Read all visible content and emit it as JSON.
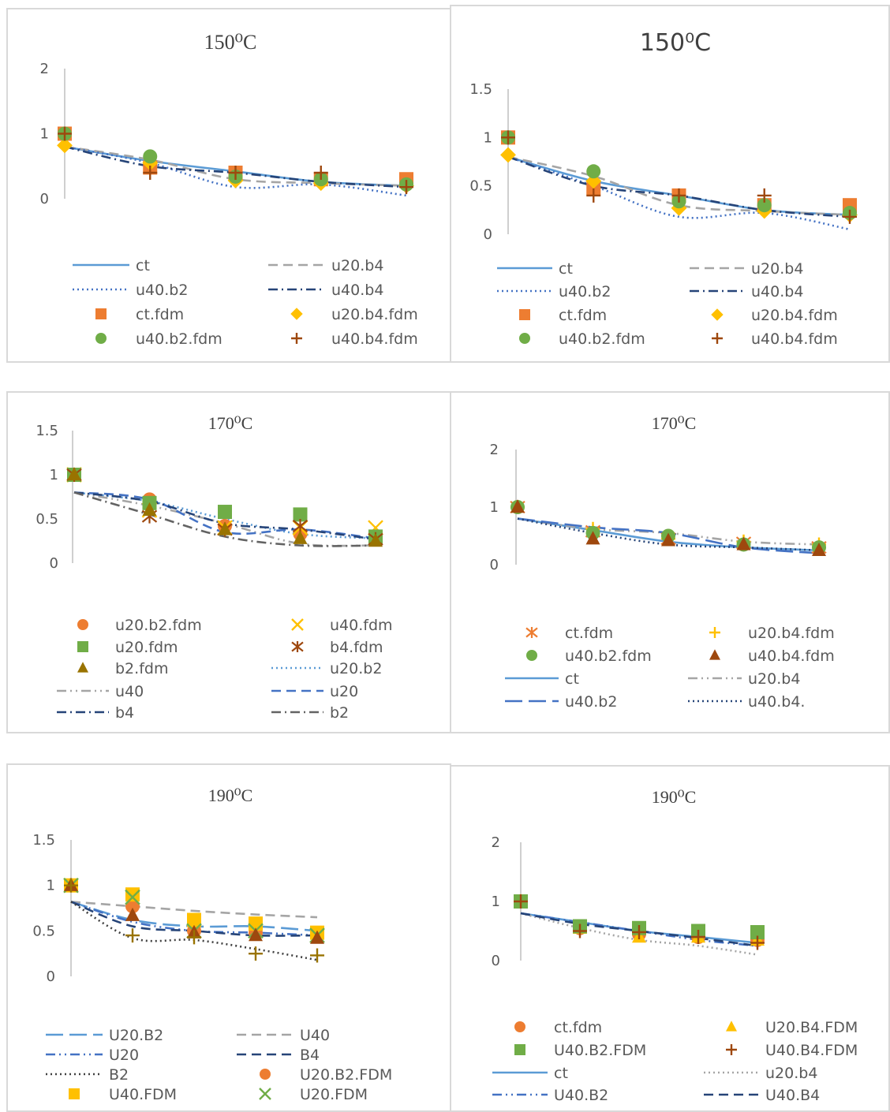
{
  "chart_data": [
    {
      "type": "line",
      "title": "150⁰C",
      "ylim": [
        0,
        2
      ],
      "yticks": [
        0,
        1,
        2
      ],
      "x": [
        1,
        2,
        3,
        4,
        5
      ],
      "series": [
        {
          "name": "ct",
          "kind": "line",
          "dash": "solid",
          "color": "#5b9bd5",
          "values": [
            0.8,
            0.58,
            0.42,
            0.26,
            0.2
          ]
        },
        {
          "name": "u20.b4",
          "kind": "line",
          "dash": "dash",
          "color": "#a5a5a5",
          "values": [
            0.8,
            0.6,
            0.3,
            0.24,
            0.2
          ]
        },
        {
          "name": "u40.b2",
          "kind": "line",
          "dash": "dot",
          "color": "#4472c4",
          "values": [
            0.8,
            0.55,
            0.18,
            0.22,
            0.05
          ]
        },
        {
          "name": "u40.b4",
          "kind": "line",
          "dash": "dashdot",
          "color": "#264478",
          "values": [
            0.8,
            0.5,
            0.4,
            0.26,
            0.18
          ]
        },
        {
          "name": "ct.fdm",
          "kind": "marker",
          "marker": "square",
          "color": "#ed7d31",
          "values": [
            1.0,
            0.48,
            0.4,
            0.3,
            0.3
          ]
        },
        {
          "name": "u20.b4.fdm",
          "kind": "marker",
          "marker": "diamond",
          "color": "#ffc000",
          "values": [
            0.82,
            0.55,
            0.28,
            0.24,
            0.2
          ]
        },
        {
          "name": "u40.b2.fdm",
          "kind": "marker",
          "marker": "circle",
          "color": "#70ad47",
          "values": [
            1.0,
            0.65,
            0.34,
            0.3,
            0.22
          ]
        },
        {
          "name": "u40.b4.fdm",
          "kind": "marker",
          "marker": "plus",
          "color": "#9e480e",
          "values": [
            1.0,
            0.4,
            0.4,
            0.4,
            0.18
          ]
        }
      ]
    },
    {
      "type": "line",
      "title": "150⁰C",
      "ylim": [
        0,
        1.5
      ],
      "yticks": [
        0,
        0.5,
        1,
        1.5
      ],
      "x": [
        1,
        2,
        3,
        4,
        5
      ],
      "series": [
        {
          "name": "ct",
          "kind": "line",
          "dash": "solid",
          "color": "#5b9bd5",
          "values": [
            0.8,
            0.55,
            0.4,
            0.25,
            0.2
          ]
        },
        {
          "name": "u20.b4",
          "kind": "line",
          "dash": "dash",
          "color": "#a5a5a5",
          "values": [
            0.8,
            0.6,
            0.3,
            0.24,
            0.2
          ]
        },
        {
          "name": "u40.b2",
          "kind": "line",
          "dash": "dot",
          "color": "#4472c4",
          "values": [
            0.8,
            0.5,
            0.18,
            0.22,
            0.05
          ]
        },
        {
          "name": "u40.b4",
          "kind": "line",
          "dash": "dashdot",
          "color": "#264478",
          "values": [
            0.8,
            0.5,
            0.4,
            0.25,
            0.18
          ]
        },
        {
          "name": "ct.fdm",
          "kind": "marker",
          "marker": "square",
          "color": "#ed7d31",
          "values": [
            1.0,
            0.48,
            0.4,
            0.3,
            0.3
          ]
        },
        {
          "name": "u20.b4.fdm",
          "kind": "marker",
          "marker": "diamond",
          "color": "#ffc000",
          "values": [
            0.82,
            0.55,
            0.27,
            0.24,
            0.2
          ]
        },
        {
          "name": "u40.b2.fdm",
          "kind": "marker",
          "marker": "circle",
          "color": "#70ad47",
          "values": [
            1.0,
            0.65,
            0.34,
            0.3,
            0.22
          ]
        },
        {
          "name": "u40.b4.fdm",
          "kind": "marker",
          "marker": "plus",
          "color": "#9e480e",
          "values": [
            1.0,
            0.4,
            0.4,
            0.4,
            0.18
          ]
        }
      ]
    },
    {
      "type": "line",
      "title": "170⁰C",
      "ylim": [
        0,
        1.5
      ],
      "yticks": [
        0,
        0.5,
        1,
        1.5
      ],
      "x": [
        1,
        2,
        3,
        4,
        5
      ],
      "series": [
        {
          "name": "u20.b2.fdm",
          "kind": "marker",
          "marker": "circle",
          "color": "#ed7d31",
          "values": [
            1.0,
            0.72,
            0.42,
            0.33,
            0.3
          ]
        },
        {
          "name": "u40.fdm",
          "kind": "marker",
          "marker": "x",
          "color": "#ffc000",
          "values": [
            1.0,
            0.6,
            0.4,
            0.4,
            0.4
          ]
        },
        {
          "name": "u20.fdm",
          "kind": "marker",
          "marker": "square",
          "color": "#70ad47",
          "values": [
            1.0,
            0.68,
            0.58,
            0.55,
            0.3
          ]
        },
        {
          "name": "b4.fdm",
          "kind": "marker",
          "marker": "asterisk",
          "color": "#9e480e",
          "values": [
            1.0,
            0.53,
            0.38,
            0.42,
            0.27
          ]
        },
        {
          "name": "b2.fdm",
          "kind": "marker",
          "marker": "triangle",
          "color": "#997300",
          "values": [
            1.0,
            0.6,
            0.38,
            0.28,
            0.25
          ]
        },
        {
          "name": "u20.b2",
          "kind": "line",
          "dash": "dot",
          "color": "#5b9bd5",
          "values": [
            0.8,
            0.7,
            0.5,
            0.33,
            0.28
          ]
        },
        {
          "name": "u40",
          "kind": "line",
          "dash": "dashdotdot",
          "color": "#a5a5a5",
          "values": [
            0.8,
            0.65,
            0.45,
            0.22,
            0.2
          ]
        },
        {
          "name": "u20",
          "kind": "line",
          "dash": "dash",
          "color": "#4472c4",
          "values": [
            0.8,
            0.72,
            0.35,
            0.38,
            0.28
          ]
        },
        {
          "name": "b4",
          "kind": "line",
          "dash": "dashdot",
          "color": "#264478",
          "values": [
            0.8,
            0.7,
            0.45,
            0.38,
            0.27
          ]
        },
        {
          "name": "b2",
          "kind": "line",
          "dash": "dashdot",
          "color": "#636363",
          "values": [
            0.8,
            0.55,
            0.3,
            0.2,
            0.2
          ]
        }
      ]
    },
    {
      "type": "line",
      "title": "170⁰C",
      "ylim": [
        0,
        2
      ],
      "yticks": [
        0,
        1,
        2
      ],
      "x": [
        1,
        2,
        3,
        4,
        5
      ],
      "series": [
        {
          "name": "ct.fdm",
          "kind": "marker",
          "marker": "asterisk",
          "color": "#ed7d31",
          "values": [
            1.0,
            0.58,
            0.45,
            0.38,
            0.3
          ]
        },
        {
          "name": "u20.b4.fdm",
          "kind": "marker",
          "marker": "plus",
          "color": "#ffc000",
          "values": [
            1.0,
            0.62,
            0.45,
            0.4,
            0.35
          ]
        },
        {
          "name": "u40.b2.fdm",
          "kind": "marker",
          "marker": "circle",
          "color": "#70ad47",
          "values": [
            1.0,
            0.55,
            0.5,
            0.35,
            0.3
          ]
        },
        {
          "name": "u40.b4.fdm",
          "kind": "marker",
          "marker": "triangle",
          "color": "#9e480e",
          "values": [
            1.0,
            0.45,
            0.42,
            0.35,
            0.25
          ]
        },
        {
          "name": "ct",
          "kind": "line",
          "dash": "solid",
          "color": "#5b9bd5",
          "values": [
            0.8,
            0.6,
            0.4,
            0.3,
            0.25
          ]
        },
        {
          "name": "u20.b4",
          "kind": "line",
          "dash": "dashdotdot",
          "color": "#a5a5a5",
          "values": [
            0.8,
            0.62,
            0.55,
            0.4,
            0.35
          ]
        },
        {
          "name": "u40.b2",
          "kind": "line",
          "dash": "longdash",
          "color": "#4472c4",
          "values": [
            0.8,
            0.65,
            0.55,
            0.3,
            0.2
          ]
        },
        {
          "name": "u40.b4.",
          "kind": "line",
          "dash": "dot",
          "color": "#264478",
          "values": [
            0.8,
            0.55,
            0.35,
            0.3,
            0.25
          ]
        }
      ]
    },
    {
      "type": "line",
      "title": "190⁰C",
      "ylim": [
        0,
        1.5
      ],
      "yticks": [
        0,
        0.5,
        1,
        1.5
      ],
      "x": [
        1,
        2,
        3,
        4,
        5
      ],
      "series": [
        {
          "name": "U20.B2",
          "kind": "line",
          "dash": "longdash",
          "color": "#5b9bd5",
          "values": [
            0.82,
            0.62,
            0.55,
            0.55,
            0.5
          ]
        },
        {
          "name": "U40",
          "kind": "line",
          "dash": "dash",
          "color": "#a5a5a5",
          "values": [
            0.82,
            0.77,
            0.72,
            0.68,
            0.65
          ]
        },
        {
          "name": "U20",
          "kind": "line",
          "dash": "dashdotdot",
          "color": "#4472c4",
          "values": [
            0.82,
            0.6,
            0.5,
            0.48,
            0.45
          ]
        },
        {
          "name": "B4",
          "kind": "line",
          "dash": "dash",
          "color": "#264478",
          "values": [
            0.82,
            0.55,
            0.5,
            0.45,
            0.45
          ]
        },
        {
          "name": "B2",
          "kind": "line",
          "dash": "dot",
          "color": "#404040",
          "values": [
            0.82,
            0.42,
            0.4,
            0.3,
            0.18
          ]
        },
        {
          "name": "U20.B2.FDM",
          "kind": "marker",
          "marker": "circle",
          "color": "#ed7d31",
          "values": [
            1.0,
            0.77,
            0.5,
            0.48,
            0.45
          ]
        },
        {
          "name": "U40.FDM",
          "kind": "marker",
          "marker": "square",
          "color": "#ffc000",
          "values": [
            1.0,
            0.9,
            0.62,
            0.58,
            0.48
          ]
        },
        {
          "name": "U20.FDM",
          "kind": "marker",
          "marker": "x",
          "color": "#70ad47",
          "values": [
            1.0,
            0.87,
            0.5,
            0.5,
            0.45
          ]
        },
        {
          "kind": "marker",
          "marker": "triangle",
          "color": "#9e480e",
          "values": [
            1.0,
            0.67,
            0.48,
            0.45,
            0.42
          ]
        },
        {
          "kind": "marker",
          "marker": "plus",
          "color": "#997300",
          "values": [
            1.0,
            0.45,
            0.43,
            0.25,
            0.23
          ]
        }
      ]
    },
    {
      "type": "line",
      "title": "190⁰C",
      "ylim": [
        0,
        2
      ],
      "yticks": [
        0,
        1,
        2
      ],
      "x": [
        1,
        2,
        3,
        4,
        5
      ],
      "series": [
        {
          "name": "ct.fdm",
          "kind": "marker",
          "marker": "circle",
          "color": "#ed7d31",
          "values": [
            1.0,
            0.55,
            0.45,
            0.4,
            0.35
          ]
        },
        {
          "name": "U20.B4.FDM",
          "kind": "marker",
          "marker": "triangle",
          "color": "#ffc000",
          "values": [
            1.0,
            0.55,
            0.4,
            0.4,
            0.35
          ]
        },
        {
          "name": "U40.B2.FDM",
          "kind": "marker",
          "marker": "square",
          "color": "#70ad47",
          "values": [
            1.0,
            0.58,
            0.55,
            0.5,
            0.48
          ]
        },
        {
          "name": "U40.B4.FDM",
          "kind": "marker",
          "marker": "plus",
          "color": "#9e480e",
          "values": [
            1.0,
            0.5,
            0.48,
            0.4,
            0.3
          ]
        },
        {
          "name": "ct",
          "kind": "line",
          "dash": "solid",
          "color": "#5b9bd5",
          "values": [
            0.8,
            0.65,
            0.5,
            0.4,
            0.3
          ]
        },
        {
          "name": "u20.b4",
          "kind": "line",
          "dash": "dot",
          "color": "#a5a5a5",
          "values": [
            0.8,
            0.55,
            0.35,
            0.25,
            0.1
          ]
        },
        {
          "name": "U40.B2",
          "kind": "line",
          "dash": "dashdotdot",
          "color": "#4472c4",
          "values": [
            0.8,
            0.65,
            0.5,
            0.35,
            0.25
          ]
        },
        {
          "name": "U40.B4",
          "kind": "line",
          "dash": "dash",
          "color": "#264478",
          "values": [
            0.8,
            0.62,
            0.5,
            0.38,
            0.25
          ]
        }
      ]
    }
  ]
}
